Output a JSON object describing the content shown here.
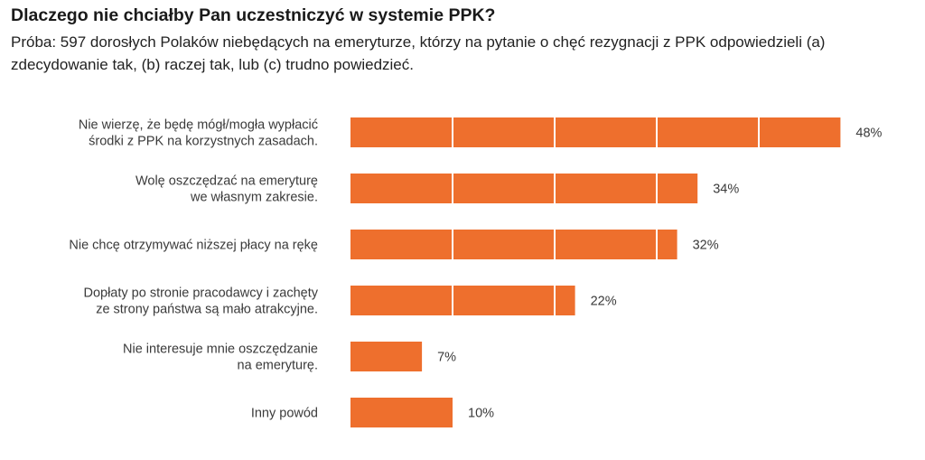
{
  "title": "Dlaczego nie chciałby Pan uczestniczyć w systemie PPK?",
  "subtitle": "Próba: 597 dorosłych Polaków niebędących na emeryturze, którzy na pytanie o chęć rezygnacji z PPK odpowiedzieli (a) zdecydowanie tak, (b) raczej tak, lub (c) trudno powiedzieć.",
  "colors": {
    "bar": "#ee6f2d",
    "divider": "#ffffff"
  },
  "chart_data": {
    "type": "bar",
    "orientation": "horizontal",
    "categories": [
      [
        "Nie wierzę, że będę mógł/mogła wypłacić",
        "środki z PPK na korzystnych zasadach."
      ],
      [
        "Wolę oszczędzać na emeryturę",
        "we własnym zakresie."
      ],
      [
        "Nie chcę otrzymywać niższej płacy na rękę"
      ],
      [
        "Dopłaty po stronie pracodawcy i zachęty",
        "ze strony państwa są mało atrakcyjne."
      ],
      [
        "Nie interesuje mnie oszczędzanie",
        "na emeryturę."
      ],
      [
        "Inny powód"
      ]
    ],
    "values": [
      48,
      34,
      32,
      22,
      7,
      10
    ],
    "value_labels": [
      "48%",
      "34%",
      "32%",
      "22%",
      "7%",
      "10%"
    ],
    "unit": "%",
    "grid": false,
    "legend": "none"
  }
}
